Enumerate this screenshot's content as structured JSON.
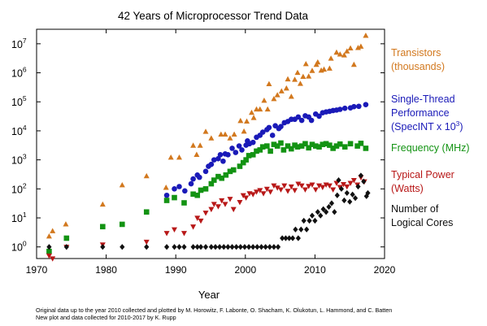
{
  "chart_data": {
    "type": "scatter",
    "title": "42 Years of Microprocessor Trend Data",
    "xlabel": "Year",
    "ylabel": "",
    "xlim": [
      1970,
      2020
    ],
    "ylim_log10": [
      -0.4,
      7.5
    ],
    "y_scale": "log",
    "x_ticks": [
      "1970",
      "1980",
      "1990",
      "2000",
      "2010",
      "2020"
    ],
    "y_ticks": [
      {
        "base": "10",
        "exp": "0"
      },
      {
        "base": "10",
        "exp": "1"
      },
      {
        "base": "10",
        "exp": "2"
      },
      {
        "base": "10",
        "exp": "3"
      },
      {
        "base": "10",
        "exp": "4"
      },
      {
        "base": "10",
        "exp": "5"
      },
      {
        "base": "10",
        "exp": "6"
      },
      {
        "base": "10",
        "exp": "7"
      }
    ],
    "legend_position": "right",
    "series": [
      {
        "name": "Transistors (thousands)",
        "legend_lines": [
          "Transistors",
          "(thousands)"
        ],
        "color": "#d2781e",
        "marker": "triangle-up",
        "points": [
          [
            1971.8,
            2.3
          ],
          [
            1972.3,
            3.5
          ],
          [
            1974.2,
            6
          ],
          [
            1979.5,
            29
          ],
          [
            1982.3,
            134
          ],
          [
            1985.8,
            275
          ],
          [
            1988.6,
            110
          ],
          [
            1989.3,
            1200
          ],
          [
            1990.5,
            1200
          ],
          [
            1992.5,
            3100
          ],
          [
            1993,
            1500
          ],
          [
            1993.5,
            3100
          ],
          [
            1994.3,
            9300
          ],
          [
            1995.1,
            5500
          ],
          [
            1996.5,
            7500
          ],
          [
            1997.1,
            7500
          ],
          [
            1997.8,
            5500
          ],
          [
            1998.4,
            7500
          ],
          [
            1999.3,
            22000
          ],
          [
            1999.8,
            9500
          ],
          [
            2000.2,
            21000
          ],
          [
            2000.9,
            42000
          ],
          [
            2001.2,
            28000
          ],
          [
            2001.6,
            55000
          ],
          [
            2002.1,
            55000
          ],
          [
            2002.7,
            110000
          ],
          [
            2003.2,
            55000
          ],
          [
            2003.4,
            410000
          ],
          [
            2004.1,
            125000
          ],
          [
            2004.6,
            170000
          ],
          [
            2005.2,
            230000
          ],
          [
            2005.9,
            290000
          ],
          [
            2006.1,
            600000
          ],
          [
            2006.6,
            150000
          ],
          [
            2007.1,
            580000
          ],
          [
            2007.5,
            1000000
          ],
          [
            2007.9,
            420000
          ],
          [
            2008.3,
            730000
          ],
          [
            2008.7,
            2000000
          ],
          [
            2009.1,
            750000
          ],
          [
            2009.6,
            1170000
          ],
          [
            2010.2,
            1900000
          ],
          [
            2010.4,
            2300000
          ],
          [
            2010.9,
            1200000
          ],
          [
            2011.3,
            1300000
          ],
          [
            2012.1,
            1400000
          ],
          [
            2012.3,
            3100000
          ],
          [
            2013.1,
            5000000
          ],
          [
            2013.6,
            4300000
          ],
          [
            2014.2,
            4000000
          ],
          [
            2014.6,
            5500000
          ],
          [
            2015.1,
            7000000
          ],
          [
            2015.6,
            1900000
          ],
          [
            2016.2,
            7200000
          ],
          [
            2016.6,
            8000000
          ],
          [
            2017.3,
            19000000
          ]
        ]
      },
      {
        "name": "Single-Thread Performance (SpecINT x 10^3)",
        "legend_lines": [
          "Single-Thread",
          "Performance"
        ],
        "legend_last_prefix": "(SpecINT x 10",
        "legend_last_sup": "3",
        "legend_last_suffix": ")",
        "color": "#1a1ab8",
        "marker": "circle",
        "points": [
          [
            1988.7,
            60
          ],
          [
            1989.8,
            100
          ],
          [
            1990.5,
            120
          ],
          [
            1991.3,
            85
          ],
          [
            1992.2,
            150
          ],
          [
            1992.5,
            220
          ],
          [
            1993.1,
            300
          ],
          [
            1993.4,
            250
          ],
          [
            1994.3,
            400
          ],
          [
            1994.7,
            600
          ],
          [
            1995.1,
            700
          ],
          [
            1995.5,
            1000
          ],
          [
            1996.1,
            1100
          ],
          [
            1996.4,
            1500
          ],
          [
            1996.8,
            900
          ],
          [
            1997.1,
            1600
          ],
          [
            1997.5,
            1500
          ],
          [
            1998.1,
            2500
          ],
          [
            1998.6,
            1800
          ],
          [
            1999.1,
            3000
          ],
          [
            1999.5,
            2200
          ],
          [
            2000.1,
            3200
          ],
          [
            2000.3,
            4500
          ],
          [
            2000.6,
            3600
          ],
          [
            2001.1,
            4000
          ],
          [
            2001.6,
            6000
          ],
          [
            2002.1,
            7000
          ],
          [
            2002.5,
            9000
          ],
          [
            2003.1,
            11000
          ],
          [
            2003.4,
            13000
          ],
          [
            2003.9,
            7000
          ],
          [
            2004.3,
            15000
          ],
          [
            2004.8,
            12000
          ],
          [
            2005.1,
            14000
          ],
          [
            2005.6,
            19000
          ],
          [
            2006.1,
            21000
          ],
          [
            2006.6,
            25000
          ],
          [
            2007.1,
            25000
          ],
          [
            2007.6,
            30000
          ],
          [
            2008.1,
            23000
          ],
          [
            2008.6,
            33000
          ],
          [
            2009.1,
            30000
          ],
          [
            2009.5,
            23000
          ],
          [
            2010.1,
            38000
          ],
          [
            2010.6,
            32000
          ],
          [
            2011.1,
            42000
          ],
          [
            2011.6,
            45000
          ],
          [
            2012.1,
            47000
          ],
          [
            2012.6,
            50000
          ],
          [
            2013.1,
            52000
          ],
          [
            2013.6,
            55000
          ],
          [
            2014.3,
            60000
          ],
          [
            2015.1,
            62000
          ],
          [
            2015.6,
            68000
          ],
          [
            2016.3,
            70000
          ],
          [
            2017.3,
            80000
          ]
        ]
      },
      {
        "name": "Frequency (MHz)",
        "legend_lines": [
          "Frequency (MHz)"
        ],
        "color": "#139313",
        "marker": "square",
        "points": [
          [
            1971.8,
            0.7
          ],
          [
            1974.3,
            2
          ],
          [
            1979.5,
            5
          ],
          [
            1982.3,
            6
          ],
          [
            1985.8,
            16
          ],
          [
            1988.7,
            40
          ],
          [
            1989.8,
            50
          ],
          [
            1991.2,
            33
          ],
          [
            1992.5,
            66
          ],
          [
            1993.1,
            60
          ],
          [
            1993.6,
            90
          ],
          [
            1994.3,
            100
          ],
          [
            1995.1,
            150
          ],
          [
            1995.5,
            200
          ],
          [
            1996.1,
            266
          ],
          [
            1996.6,
            233
          ],
          [
            1997.2,
            300
          ],
          [
            1997.8,
            400
          ],
          [
            1998.3,
            450
          ],
          [
            1999.2,
            600
          ],
          [
            1999.7,
            800
          ],
          [
            2000.1,
            1000
          ],
          [
            2000.5,
            1400
          ],
          [
            2001.1,
            1500
          ],
          [
            2001.6,
            2000
          ],
          [
            2002.1,
            2200
          ],
          [
            2002.5,
            2800
          ],
          [
            2003.1,
            3000
          ],
          [
            2003.6,
            2000
          ],
          [
            2004.1,
            3400
          ],
          [
            2004.6,
            3000
          ],
          [
            2005.1,
            3800
          ],
          [
            2005.5,
            2200
          ],
          [
            2006.1,
            3000
          ],
          [
            2006.6,
            2400
          ],
          [
            2007.1,
            3200
          ],
          [
            2007.5,
            2800
          ],
          [
            2008.1,
            3000
          ],
          [
            2008.6,
            3600
          ],
          [
            2009.1,
            2600
          ],
          [
            2009.6,
            3400
          ],
          [
            2010.1,
            3000
          ],
          [
            2010.6,
            2800
          ],
          [
            2011.1,
            3400
          ],
          [
            2011.6,
            3600
          ],
          [
            2012.1,
            3200
          ],
          [
            2012.6,
            2500
          ],
          [
            2013.1,
            3000
          ],
          [
            2013.6,
            3500
          ],
          [
            2014.3,
            2800
          ],
          [
            2015.1,
            3600
          ],
          [
            2016.1,
            3000
          ],
          [
            2016.6,
            3700
          ],
          [
            2017.3,
            2500
          ]
        ]
      },
      {
        "name": "Typical Power (Watts)",
        "legend_lines": [
          "Typical Power",
          "(Watts)"
        ],
        "color": "#b81818",
        "marker": "triangle-down",
        "points": [
          [
            1971.8,
            0.5
          ],
          [
            1972.3,
            0.4
          ],
          [
            1974.3,
            1
          ],
          [
            1979.5,
            1.2
          ],
          [
            1985.8,
            1.5
          ],
          [
            1988.7,
            3
          ],
          [
            1989.8,
            4
          ],
          [
            1991.2,
            3
          ],
          [
            1992.5,
            5
          ],
          [
            1993.1,
            10
          ],
          [
            1993.6,
            8
          ],
          [
            1994.3,
            15
          ],
          [
            1995.1,
            20
          ],
          [
            1995.5,
            30
          ],
          [
            1996.1,
            25
          ],
          [
            1996.6,
            40
          ],
          [
            1997.1,
            30
          ],
          [
            1997.8,
            45
          ],
          [
            1998.3,
            20
          ],
          [
            1999.2,
            35
          ],
          [
            1999.7,
            60
          ],
          [
            2000.1,
            50
          ],
          [
            2000.6,
            70
          ],
          [
            2001.1,
            65
          ],
          [
            2001.6,
            80
          ],
          [
            2002.1,
            90
          ],
          [
            2002.6,
            70
          ],
          [
            2003.1,
            100
          ],
          [
            2003.6,
            80
          ],
          [
            2004.1,
            130
          ],
          [
            2004.6,
            110
          ],
          [
            2005.1,
            95
          ],
          [
            2005.6,
            130
          ],
          [
            2006.1,
            85
          ],
          [
            2006.6,
            120
          ],
          [
            2007.1,
            90
          ],
          [
            2007.6,
            150
          ],
          [
            2008.1,
            130
          ],
          [
            2008.6,
            95
          ],
          [
            2009.1,
            125
          ],
          [
            2009.6,
            140
          ],
          [
            2010.1,
            95
          ],
          [
            2010.6,
            130
          ],
          [
            2011.1,
            115
          ],
          [
            2011.6,
            140
          ],
          [
            2012.1,
            130
          ],
          [
            2012.6,
            95
          ],
          [
            2013.1,
            160
          ],
          [
            2013.6,
            115
          ],
          [
            2014.1,
            145
          ],
          [
            2014.6,
            120
          ],
          [
            2015.1,
            160
          ],
          [
            2015.6,
            200
          ],
          [
            2016.1,
            140
          ],
          [
            2016.6,
            250
          ],
          [
            2017.1,
            180
          ]
        ]
      },
      {
        "name": "Number of Logical Cores",
        "legend_lines": [
          "Number of",
          "Logical Cores"
        ],
        "color": "#111111",
        "marker": "diamond",
        "points": [
          [
            1971.8,
            1
          ],
          [
            1974.3,
            1
          ],
          [
            1979.5,
            1
          ],
          [
            1982.3,
            1
          ],
          [
            1985.8,
            1
          ],
          [
            1988.7,
            1
          ],
          [
            1989.8,
            1
          ],
          [
            1990.5,
            1
          ],
          [
            1991.2,
            1
          ],
          [
            1992.5,
            1
          ],
          [
            1993.1,
            1
          ],
          [
            1993.6,
            1
          ],
          [
            1994.3,
            1
          ],
          [
            1995.1,
            1
          ],
          [
            1995.7,
            1
          ],
          [
            1996.3,
            1
          ],
          [
            1996.9,
            1
          ],
          [
            1997.5,
            1
          ],
          [
            1998.1,
            1
          ],
          [
            1998.7,
            1
          ],
          [
            1999.3,
            1
          ],
          [
            1999.9,
            1
          ],
          [
            2000.5,
            1
          ],
          [
            2001.1,
            1
          ],
          [
            2001.7,
            1
          ],
          [
            2002.3,
            1
          ],
          [
            2002.9,
            1
          ],
          [
            2003.5,
            1
          ],
          [
            2004.1,
            1
          ],
          [
            2004.7,
            1
          ],
          [
            2005.3,
            2
          ],
          [
            2005.8,
            2
          ],
          [
            2006.3,
            2
          ],
          [
            2006.8,
            2
          ],
          [
            2007.2,
            4
          ],
          [
            2007.6,
            2
          ],
          [
            2008.0,
            4
          ],
          [
            2008.4,
            8
          ],
          [
            2008.8,
            4
          ],
          [
            2009.2,
            8
          ],
          [
            2009.6,
            12
          ],
          [
            2010.0,
            8
          ],
          [
            2010.4,
            16
          ],
          [
            2010.8,
            12
          ],
          [
            2011.2,
            20
          ],
          [
            2011.6,
            16
          ],
          [
            2012.0,
            24
          ],
          [
            2012.4,
            32
          ],
          [
            2012.8,
            16
          ],
          [
            2013.2,
            60
          ],
          [
            2013.4,
            200
          ],
          [
            2013.8,
            100
          ],
          [
            2014.2,
            40
          ],
          [
            2014.6,
            72
          ],
          [
            2015.0,
            36
          ],
          [
            2015.4,
            64
          ],
          [
            2015.8,
            48
          ],
          [
            2016.2,
            120
          ],
          [
            2016.6,
            288
          ],
          [
            2017.0,
            180
          ],
          [
            2017.4,
            56
          ],
          [
            2017.6,
            72
          ]
        ]
      }
    ]
  },
  "credits": {
    "line1": "Original data up to the year 2010 collected and plotted by M. Horowitz, F. Labonte, O. Shacham, K. Olukotun, L. Hammond, and C. Batten",
    "line2": "New plot and data collected for 2010-2017 by K. Rupp"
  }
}
